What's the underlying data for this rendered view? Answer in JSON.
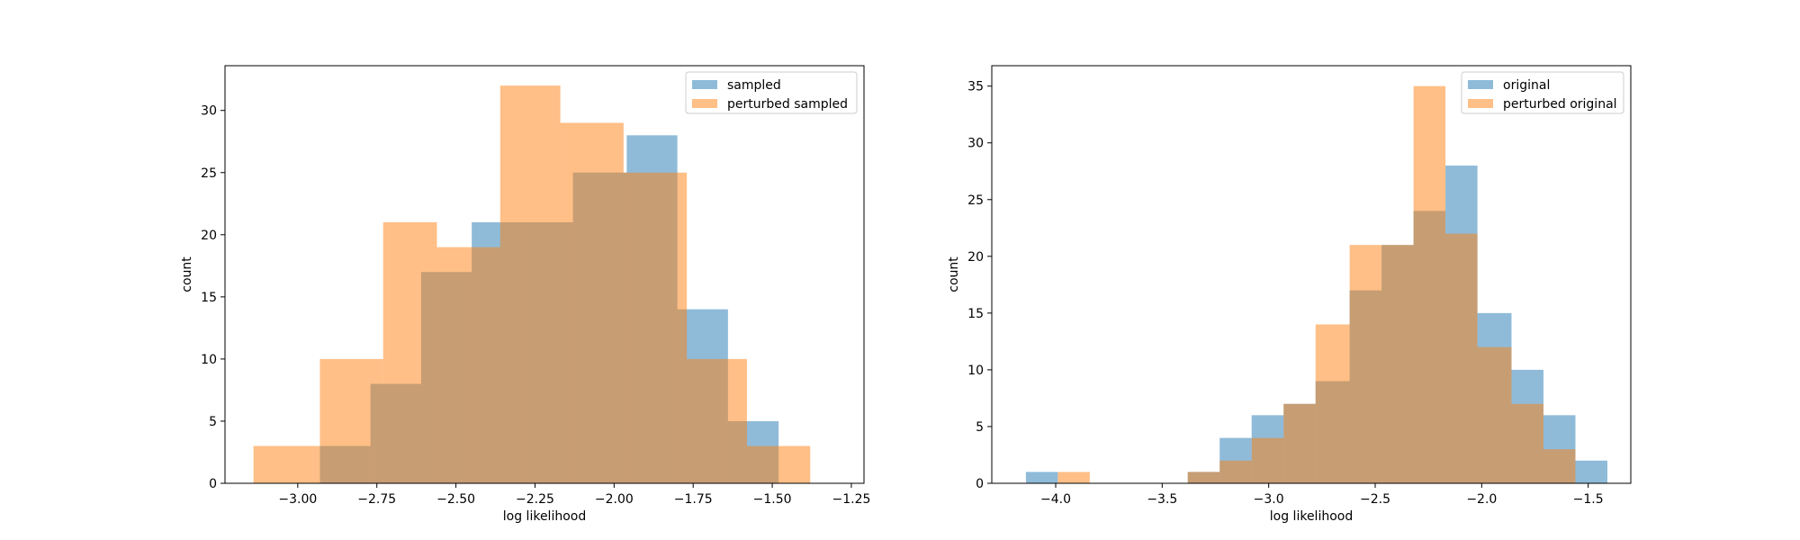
{
  "chart_data": [
    {
      "type": "bar",
      "xlabel": "log likelihood",
      "ylabel": "count",
      "xlim": [
        -3.23,
        -1.21
      ],
      "ylim": [
        0,
        33.6
      ],
      "xticks": [
        -3.0,
        -2.75,
        -2.5,
        -2.25,
        -2.0,
        -1.75,
        -1.5,
        -1.25
      ],
      "xtick_labels": [
        "−3.00",
        "−2.75",
        "−2.50",
        "−2.25",
        "−2.00",
        "−1.75",
        "−1.50",
        "−1.25"
      ],
      "yticks": [
        0,
        5,
        10,
        15,
        20,
        25,
        30
      ],
      "ytick_labels": [
        "0",
        "5",
        "10",
        "15",
        "20",
        "25",
        "30"
      ],
      "grid": false,
      "legend_position": "top-right",
      "series": [
        {
          "name": "sampled",
          "color": "#1f77b4",
          "opacity": 0.5,
          "bin_edges": [
            -2.93,
            -2.77,
            -2.61,
            -2.45,
            -2.29,
            -2.13,
            -1.96,
            -1.8,
            -1.64,
            -1.48,
            -1.32
          ],
          "counts": [
            3,
            8,
            17,
            21,
            21,
            25,
            28,
            14,
            5,
            0
          ]
        },
        {
          "name": "perturbed sampled",
          "color": "#ff7f0e",
          "opacity": 0.5,
          "bin_edges": [
            -3.14,
            -2.93,
            -2.73,
            -2.56,
            -2.36,
            -2.17,
            -1.97,
            -1.77,
            -1.58,
            -1.38,
            -1.19
          ],
          "counts": [
            3,
            10,
            21,
            19,
            32,
            29,
            25,
            10,
            3,
            0
          ]
        }
      ]
    },
    {
      "type": "bar",
      "xlabel": "log likelihood",
      "ylabel": "count",
      "xlim": [
        -4.3,
        -1.3
      ],
      "ylim": [
        0,
        36.8
      ],
      "xticks": [
        -4.0,
        -3.5,
        -3.0,
        -2.5,
        -2.0,
        -1.5
      ],
      "xtick_labels": [
        "−4.0",
        "−3.5",
        "−3.0",
        "−2.5",
        "−2.0",
        "−1.5"
      ],
      "yticks": [
        0,
        5,
        10,
        15,
        20,
        25,
        30,
        35
      ],
      "ytick_labels": [
        "0",
        "5",
        "10",
        "15",
        "20",
        "25",
        "30",
        "35"
      ],
      "grid": false,
      "legend_position": "top-right",
      "series": [
        {
          "name": "original",
          "color": "#1f77b4",
          "opacity": 0.5,
          "bin_edges": [
            -4.14,
            -3.99,
            -3.84,
            -3.69,
            -3.53,
            -3.38,
            -3.23,
            -3.08,
            -2.93,
            -2.78,
            -2.62,
            -2.47,
            -2.32,
            -2.17,
            -2.02,
            -1.86,
            -1.71,
            -1.56,
            -1.41
          ],
          "counts": [
            1,
            0,
            0,
            0,
            0,
            1,
            4,
            6,
            7,
            9,
            17,
            21,
            24,
            28,
            15,
            10,
            6,
            2
          ]
        },
        {
          "name": "perturbed original",
          "color": "#ff7f0e",
          "opacity": 0.5,
          "bin_edges": [
            -3.99,
            -3.84,
            -3.69,
            -3.53,
            -3.38,
            -3.23,
            -3.08,
            -2.93,
            -2.78,
            -2.62,
            -2.47,
            -2.32,
            -2.17,
            -2.02,
            -1.86,
            -1.71,
            -1.56,
            -1.41
          ],
          "counts": [
            1,
            0,
            0,
            0,
            1,
            2,
            4,
            7,
            14,
            21,
            21,
            35,
            22,
            12,
            7,
            3,
            0
          ]
        }
      ]
    }
  ]
}
